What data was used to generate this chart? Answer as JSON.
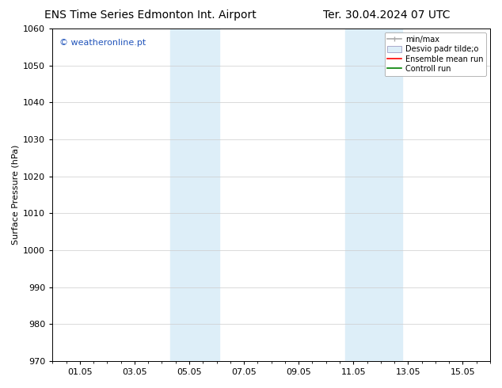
{
  "title_left": "ENS Time Series Edmonton Int. Airport",
  "title_right": "Ter. 30.04.2024 07 UTC",
  "ylabel": "Surface Pressure (hPa)",
  "ylim": [
    970,
    1060
  ],
  "yticks": [
    970,
    980,
    990,
    1000,
    1010,
    1020,
    1030,
    1040,
    1050,
    1060
  ],
  "xtick_labels": [
    "01.05",
    "03.05",
    "05.05",
    "07.05",
    "09.05",
    "11.05",
    "13.05",
    "15.05"
  ],
  "xtick_positions": [
    1,
    3,
    5,
    7,
    9,
    11,
    13,
    15
  ],
  "xlim": [
    0.0,
    16.0
  ],
  "shaded_regions": [
    {
      "x_start": 4.3,
      "x_end": 6.1,
      "color": "#ddeef8"
    },
    {
      "x_start": 10.7,
      "x_end": 12.8,
      "color": "#ddeef8"
    }
  ],
  "watermark_text": "© weatheronline.pt",
  "watermark_color": "#2255bb",
  "bg_color": "#ffffff",
  "grid_color": "#cccccc",
  "title_fontsize": 10,
  "tick_fontsize": 8,
  "label_fontsize": 8
}
